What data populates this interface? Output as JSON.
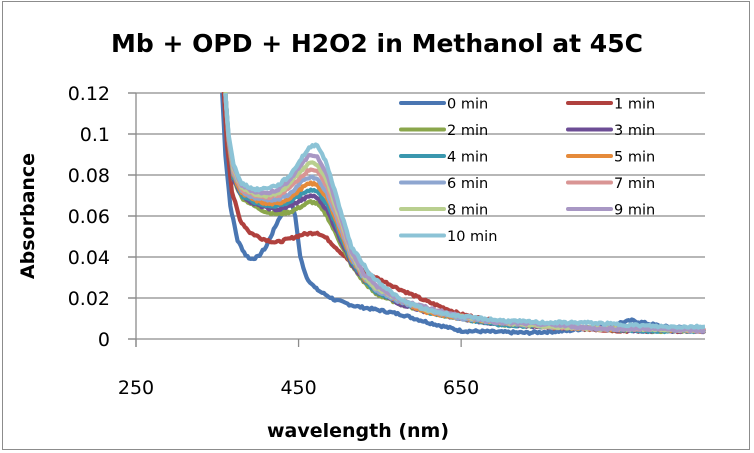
{
  "chart_data": {
    "type": "line",
    "title": "Mb + OPD + H2O2 in Methanol at 45C",
    "xlabel": "wavelength (nm)",
    "ylabel": "Absorbance",
    "xlim": [
      250,
      950
    ],
    "ylim": [
      0,
      0.12
    ],
    "xticks": [
      250,
      450,
      650
    ],
    "xtick_labels": [
      "250",
      "450",
      "650"
    ],
    "yticks": [
      0,
      0.02,
      0.04,
      0.06,
      0.08,
      0.1,
      0.12
    ],
    "ytick_labels": [
      "0",
      "0.02",
      "0.04",
      "0.06",
      "0.08",
      "0.1",
      "0.12"
    ],
    "grid": "horizontal",
    "legend_position": "top-right",
    "series": [
      {
        "name": "0 min",
        "color": "#4a76b2",
        "x": [
          356,
          360,
          366,
          375,
          385,
          391,
          400,
          410,
          425,
          435,
          440,
          446,
          452,
          460,
          470,
          477,
          495,
          520,
          550,
          576,
          610,
          650,
          690,
          730,
          780,
          820,
          860,
          900,
          950
        ],
        "y": [
          0.12,
          0.09,
          0.065,
          0.048,
          0.041,
          0.039,
          0.04,
          0.045,
          0.058,
          0.065,
          0.068,
          0.06,
          0.04,
          0.03,
          0.025,
          0.023,
          0.019,
          0.016,
          0.014,
          0.012,
          0.008,
          0.004,
          0.0035,
          0.003,
          0.004,
          0.006,
          0.009,
          0.006,
          0.005
        ]
      },
      {
        "name": "1 min",
        "color": "#b0413e",
        "x": [
          358,
          362,
          368,
          378,
          390,
          405,
          422,
          440,
          455,
          473,
          485,
          500,
          514,
          540,
          576,
          610,
          650,
          700,
          750,
          800,
          850,
          900,
          950
        ],
        "y": [
          0.12,
          0.095,
          0.072,
          0.058,
          0.052,
          0.049,
          0.047,
          0.049,
          0.051,
          0.052,
          0.049,
          0.043,
          0.0375,
          0.031,
          0.024,
          0.018,
          0.012,
          0.008,
          0.006,
          0.005,
          0.004,
          0.004,
          0.004
        ]
      },
      {
        "name": "2 min",
        "color": "#8aa64b",
        "x": [
          360,
          364,
          370,
          380,
          395,
          410,
          425,
          440,
          455,
          465,
          473,
          485,
          500,
          515,
          530,
          545,
          576,
          610,
          650,
          700,
          760,
          820,
          880,
          950
        ],
        "y": [
          0.12,
          0.095,
          0.078,
          0.069,
          0.065,
          0.062,
          0.061,
          0.062,
          0.065,
          0.067,
          0.066,
          0.06,
          0.048,
          0.036,
          0.028,
          0.022,
          0.017,
          0.013,
          0.01,
          0.007,
          0.006,
          0.005,
          0.004,
          0.004
        ]
      },
      {
        "name": "3 min",
        "color": "#6c4d95",
        "x": [
          360,
          364,
          370,
          380,
          395,
          410,
          425,
          440,
          455,
          465,
          473,
          485,
          500,
          515,
          530,
          545,
          576,
          610,
          650,
          700,
          760,
          820,
          880,
          950
        ],
        "y": [
          0.12,
          0.095,
          0.078,
          0.07,
          0.066,
          0.064,
          0.063,
          0.065,
          0.068,
          0.07,
          0.069,
          0.063,
          0.05,
          0.037,
          0.029,
          0.023,
          0.017,
          0.013,
          0.01,
          0.007,
          0.006,
          0.005,
          0.004,
          0.004
        ]
      },
      {
        "name": "4 min",
        "color": "#3a97ae",
        "x": [
          360,
          364,
          370,
          380,
          395,
          410,
          425,
          440,
          455,
          465,
          473,
          485,
          500,
          515,
          530,
          545,
          576,
          610,
          650,
          700,
          760,
          820,
          880,
          950
        ],
        "y": [
          0.12,
          0.096,
          0.079,
          0.07,
          0.067,
          0.065,
          0.065,
          0.067,
          0.071,
          0.073,
          0.072,
          0.066,
          0.052,
          0.038,
          0.029,
          0.023,
          0.018,
          0.013,
          0.01,
          0.007,
          0.006,
          0.005,
          0.004,
          0.004
        ]
      },
      {
        "name": "5 min",
        "color": "#e58a3a",
        "x": [
          360,
          364,
          370,
          380,
          395,
          410,
          425,
          440,
          455,
          465,
          473,
          485,
          500,
          515,
          530,
          545,
          576,
          610,
          650,
          700,
          760,
          820,
          880,
          950
        ],
        "y": [
          0.12,
          0.096,
          0.08,
          0.071,
          0.068,
          0.066,
          0.066,
          0.069,
          0.074,
          0.076,
          0.075,
          0.069,
          0.054,
          0.039,
          0.03,
          0.024,
          0.018,
          0.013,
          0.01,
          0.008,
          0.006,
          0.005,
          0.005,
          0.004
        ]
      },
      {
        "name": "6 min",
        "color": "#8ea6d0",
        "x": [
          360,
          364,
          370,
          380,
          395,
          410,
          425,
          440,
          455,
          465,
          473,
          485,
          500,
          515,
          530,
          545,
          576,
          610,
          650,
          700,
          760,
          820,
          880,
          950
        ],
        "y": [
          0.12,
          0.097,
          0.081,
          0.072,
          0.069,
          0.068,
          0.068,
          0.071,
          0.077,
          0.079,
          0.078,
          0.071,
          0.056,
          0.04,
          0.03,
          0.024,
          0.018,
          0.014,
          0.01,
          0.008,
          0.006,
          0.005,
          0.005,
          0.004
        ]
      },
      {
        "name": "7 min",
        "color": "#d99594",
        "x": [
          360,
          364,
          370,
          380,
          395,
          410,
          425,
          440,
          455,
          465,
          473,
          485,
          500,
          515,
          530,
          545,
          576,
          610,
          650,
          700,
          760,
          820,
          880,
          950
        ],
        "y": [
          0.12,
          0.097,
          0.082,
          0.073,
          0.07,
          0.069,
          0.07,
          0.074,
          0.08,
          0.083,
          0.082,
          0.074,
          0.058,
          0.041,
          0.031,
          0.025,
          0.019,
          0.014,
          0.011,
          0.008,
          0.006,
          0.005,
          0.005,
          0.004
        ]
      },
      {
        "name": "8 min",
        "color": "#b9cf8f",
        "x": [
          360,
          364,
          370,
          380,
          395,
          410,
          425,
          440,
          455,
          465,
          473,
          485,
          500,
          515,
          530,
          545,
          576,
          610,
          650,
          700,
          760,
          820,
          880,
          950
        ],
        "y": [
          0.12,
          0.098,
          0.083,
          0.074,
          0.071,
          0.07,
          0.071,
          0.076,
          0.083,
          0.086,
          0.085,
          0.077,
          0.06,
          0.042,
          0.031,
          0.025,
          0.019,
          0.014,
          0.011,
          0.008,
          0.006,
          0.005,
          0.005,
          0.004
        ]
      },
      {
        "name": "9 min",
        "color": "#a897c4",
        "x": [
          360,
          364,
          370,
          380,
          395,
          410,
          425,
          440,
          455,
          465,
          473,
          485,
          500,
          515,
          530,
          545,
          576,
          610,
          650,
          700,
          760,
          820,
          880,
          950
        ],
        "y": [
          0.12,
          0.098,
          0.084,
          0.075,
          0.072,
          0.071,
          0.073,
          0.078,
          0.086,
          0.09,
          0.089,
          0.08,
          0.062,
          0.043,
          0.032,
          0.026,
          0.019,
          0.015,
          0.011,
          0.008,
          0.007,
          0.005,
          0.005,
          0.004
        ]
      },
      {
        "name": "10 min",
        "color": "#8cc3d6",
        "x": [
          360,
          364,
          370,
          380,
          395,
          403,
          425,
          440,
          455,
          465,
          473,
          485,
          500,
          515,
          539,
          576,
          610,
          650,
          675,
          700,
          750,
          800,
          850,
          900,
          950
        ],
        "y": [
          0.12,
          0.099,
          0.085,
          0.076,
          0.073,
          0.073,
          0.075,
          0.08,
          0.089,
          0.094,
          0.095,
          0.085,
          0.065,
          0.045,
          0.031,
          0.019,
          0.014,
          0.011,
          0.01,
          0.009,
          0.008,
          0.008,
          0.007,
          0.006,
          0.006
        ]
      }
    ]
  }
}
